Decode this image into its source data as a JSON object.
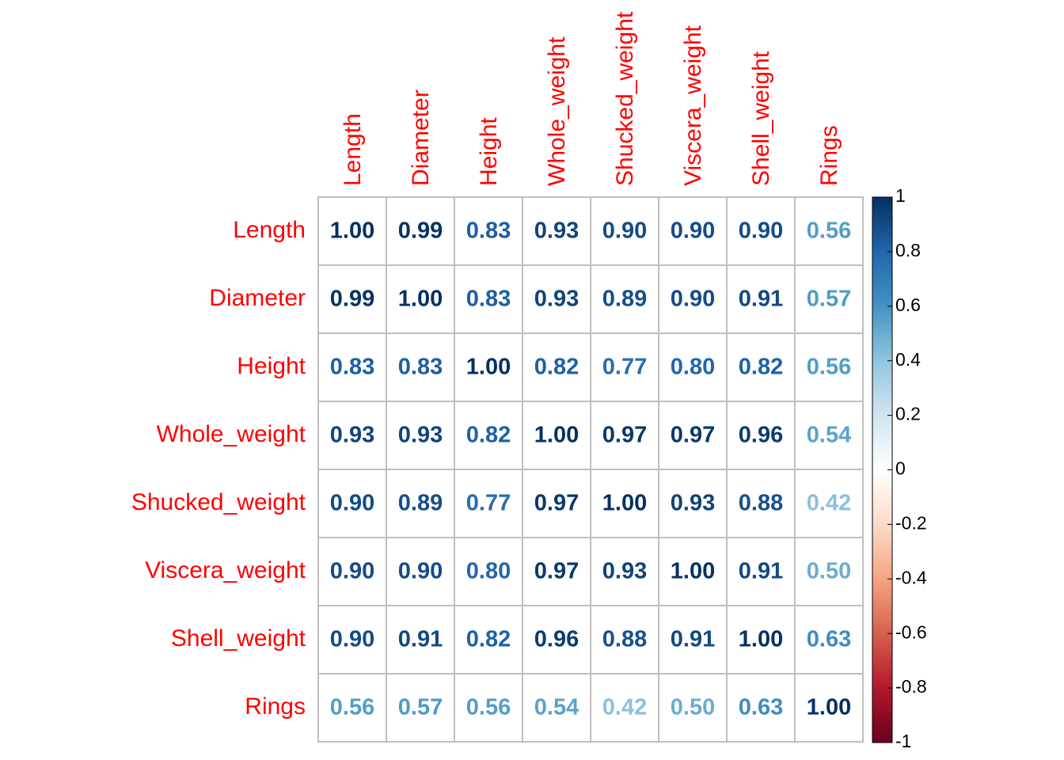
{
  "chart_data": {
    "type": "heatmap",
    "variables": [
      "Length",
      "Diameter",
      "Height",
      "Whole_weight",
      "Shucked_weight",
      "Viscera_weight",
      "Shell_weight",
      "Rings"
    ],
    "matrix": [
      [
        1.0,
        0.99,
        0.83,
        0.93,
        0.9,
        0.9,
        0.9,
        0.56
      ],
      [
        0.99,
        1.0,
        0.83,
        0.93,
        0.89,
        0.9,
        0.91,
        0.57
      ],
      [
        0.83,
        0.83,
        1.0,
        0.82,
        0.77,
        0.8,
        0.82,
        0.56
      ],
      [
        0.93,
        0.93,
        0.82,
        1.0,
        0.97,
        0.97,
        0.96,
        0.54
      ],
      [
        0.9,
        0.89,
        0.77,
        0.97,
        1.0,
        0.93,
        0.88,
        0.42
      ],
      [
        0.9,
        0.9,
        0.8,
        0.97,
        0.93,
        1.0,
        0.91,
        0.5
      ],
      [
        0.9,
        0.91,
        0.82,
        0.96,
        0.88,
        0.91,
        1.0,
        0.63
      ],
      [
        0.56,
        0.57,
        0.56,
        0.54,
        0.42,
        0.5,
        0.63,
        1.0
      ]
    ],
    "value_labels": [
      [
        "1.00",
        "0.99",
        "0.83",
        "0.93",
        "0.90",
        "0.90",
        "0.90",
        "0.56"
      ],
      [
        "0.99",
        "1.00",
        "0.83",
        "0.93",
        "0.89",
        "0.90",
        "0.91",
        "0.57"
      ],
      [
        "0.83",
        "0.83",
        "1.00",
        "0.82",
        "0.77",
        "0.80",
        "0.82",
        "0.56"
      ],
      [
        "0.93",
        "0.93",
        "0.82",
        "1.00",
        "0.97",
        "0.97",
        "0.96",
        "0.54"
      ],
      [
        "0.90",
        "0.89",
        "0.77",
        "0.97",
        "1.00",
        "0.93",
        "0.88",
        "0.42"
      ],
      [
        "0.90",
        "0.90",
        "0.80",
        "0.97",
        "0.93",
        "1.00",
        "0.91",
        "0.50"
      ],
      [
        "0.90",
        "0.91",
        "0.82",
        "0.96",
        "0.88",
        "0.91",
        "1.00",
        "0.63"
      ],
      [
        "0.56",
        "0.57",
        "0.56",
        "0.54",
        "0.42",
        "0.50",
        "0.63",
        "1.00"
      ]
    ],
    "colorbar": {
      "range": [
        -1,
        1
      ],
      "ticks": [
        1,
        0.8,
        0.6,
        0.4,
        0.2,
        0,
        -0.2,
        -0.4,
        -0.6,
        -0.8,
        -1
      ],
      "tick_labels": [
        "1",
        "0.8",
        "0.6",
        "0.4",
        "0.2",
        "0",
        "-0.2",
        "-0.4",
        "-0.6",
        "-0.8",
        "-1"
      ]
    },
    "label_color": "#ff0000",
    "grid_color": "#bebebe",
    "palette": [
      "#67001f",
      "#b2182b",
      "#d6604d",
      "#f4a582",
      "#fddbc7",
      "#ffffff",
      "#d1e5f0",
      "#92c5de",
      "#4393c3",
      "#2166ac",
      "#053061"
    ]
  }
}
